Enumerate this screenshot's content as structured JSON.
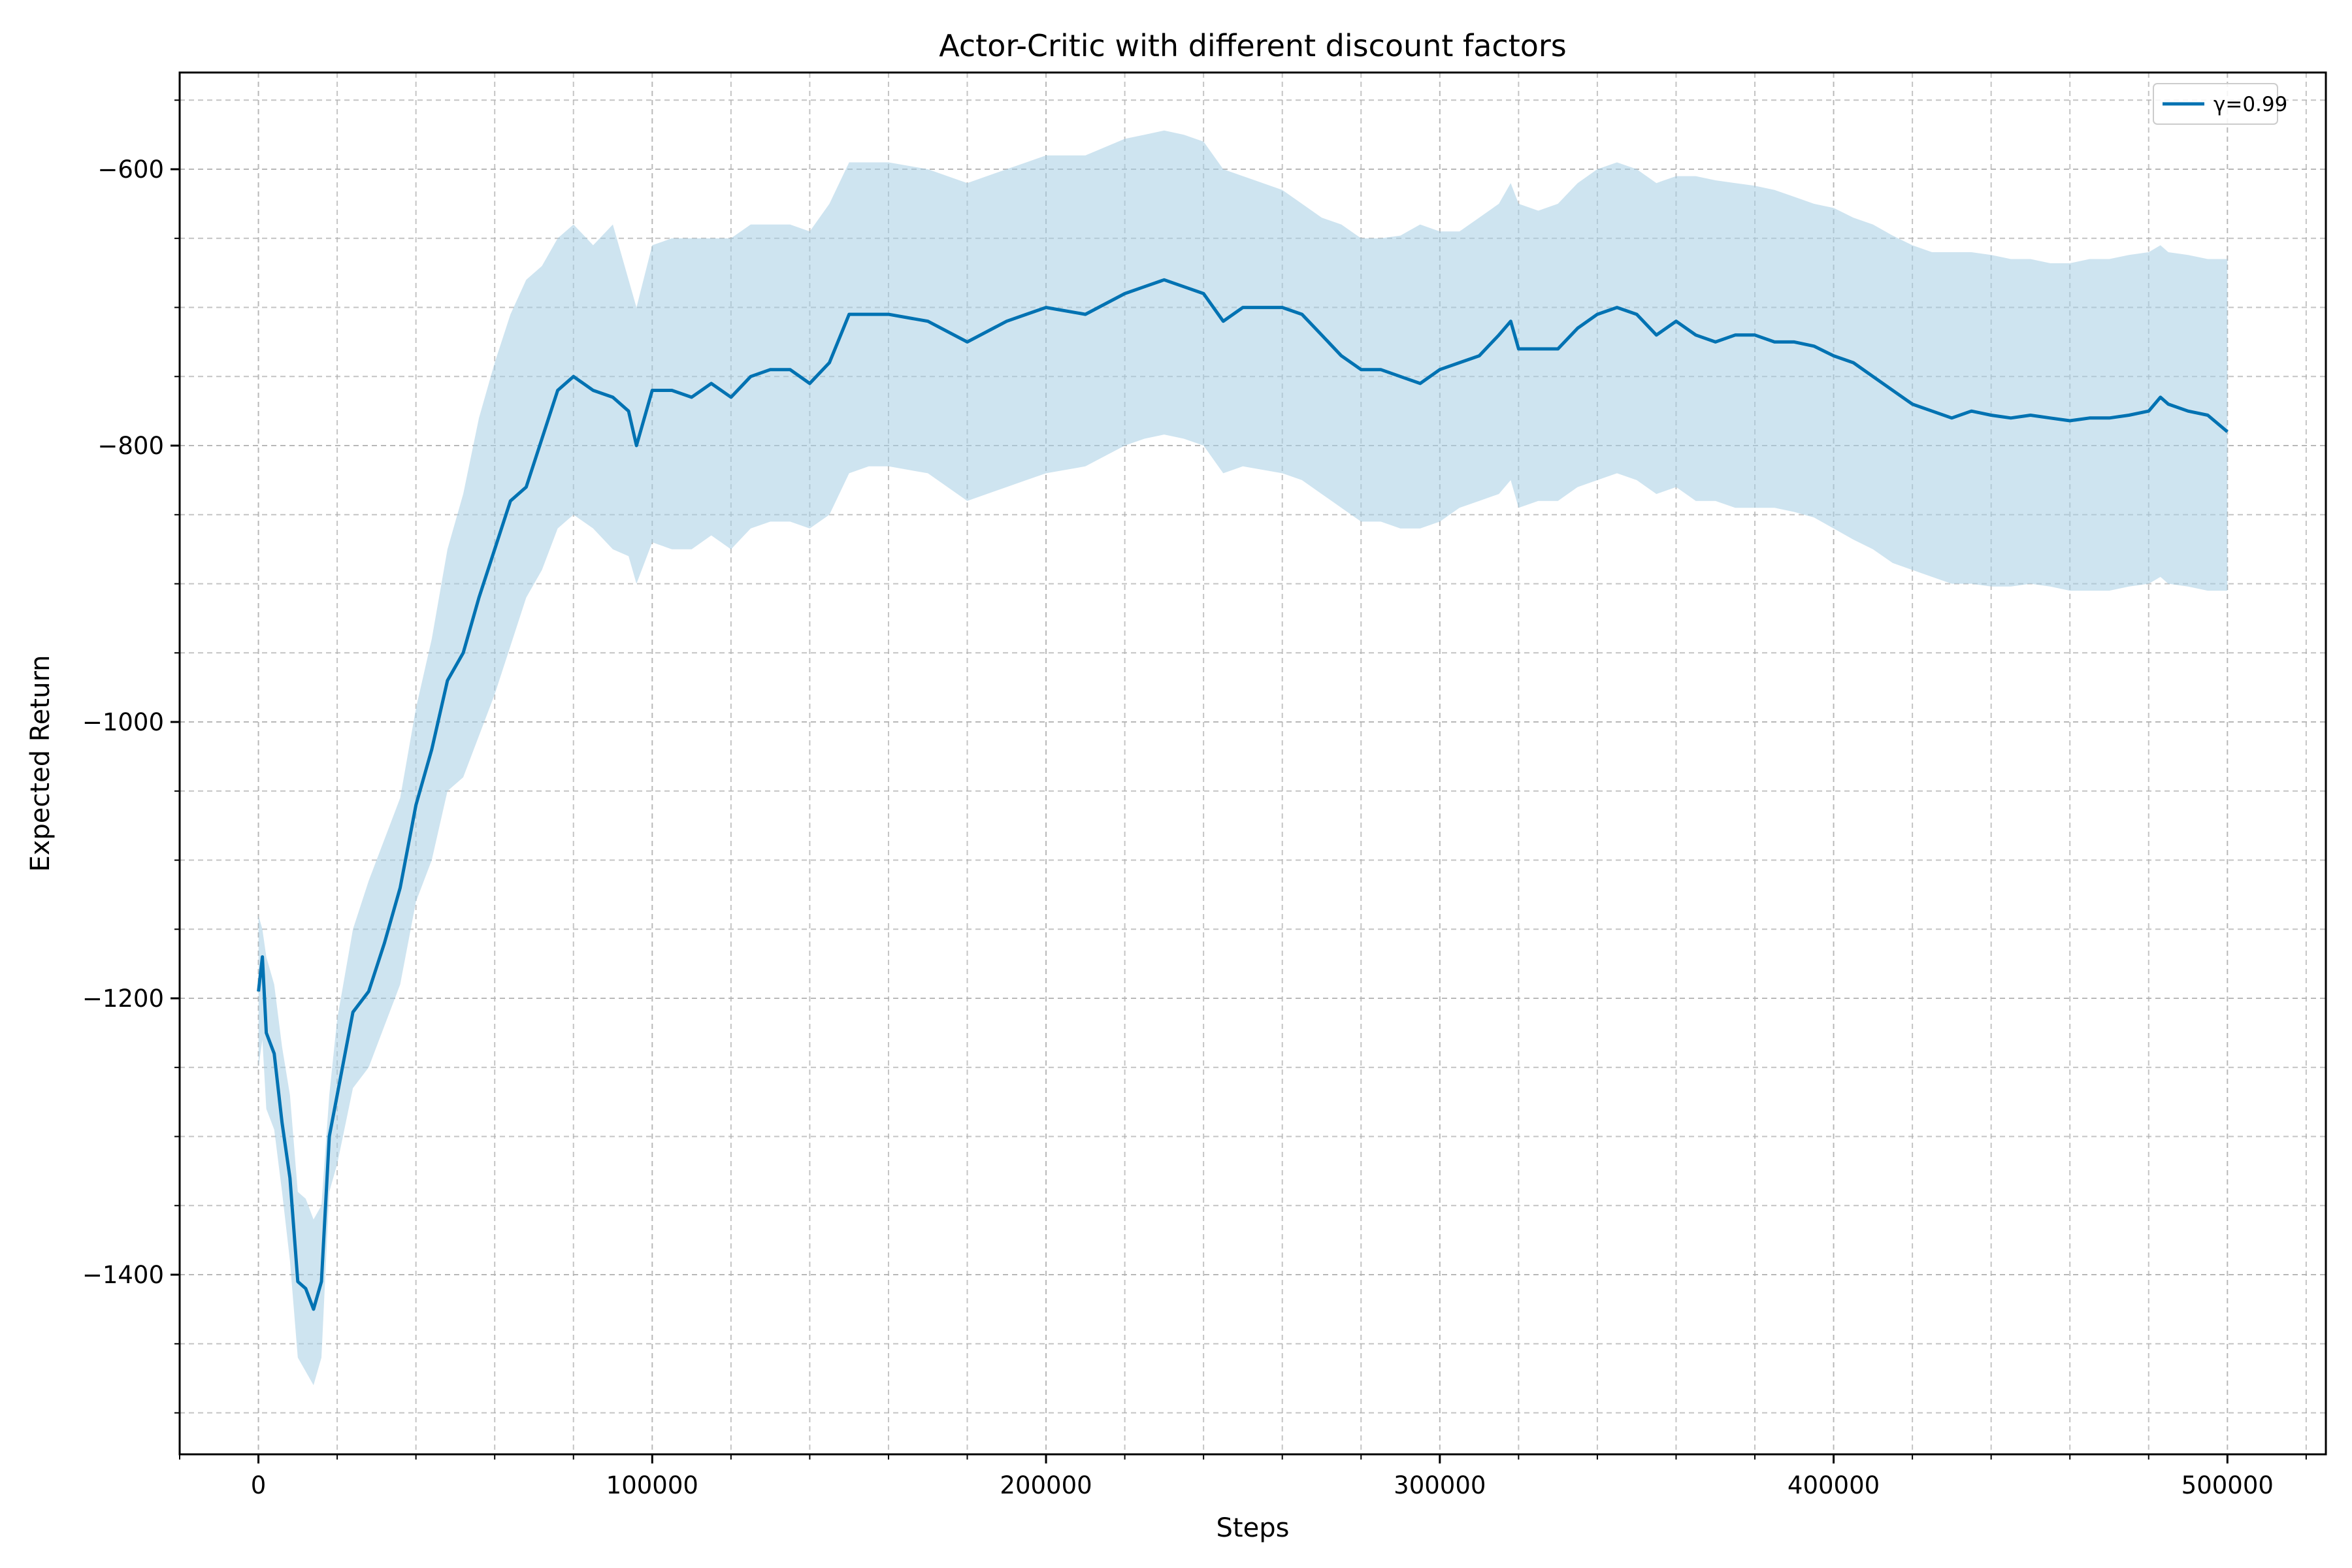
{
  "chart_data": {
    "type": "line",
    "title": "Actor-Critic with different discount factors",
    "xlabel": "Steps",
    "ylabel": "Expected Return",
    "xlim": [
      -20000,
      525000
    ],
    "ylim": [
      -1530,
      -530
    ],
    "x_ticks": [
      0,
      100000,
      200000,
      300000,
      400000,
      500000
    ],
    "y_ticks": [
      -600,
      -800,
      -1000,
      -1200,
      -1400
    ],
    "grid": true,
    "grid_minor": true,
    "legend_position": "top-right",
    "series": [
      {
        "name": "γ=0.99",
        "color": "#0072b2",
        "band_color": "#a6cde3",
        "x": [
          0,
          1000,
          2000,
          4000,
          6000,
          8000,
          10000,
          12000,
          14000,
          16000,
          18000,
          20000,
          24000,
          28000,
          32000,
          36000,
          40000,
          44000,
          48000,
          52000,
          56000,
          60000,
          64000,
          68000,
          72000,
          76000,
          80000,
          85000,
          90000,
          94000,
          96000,
          100000,
          105000,
          110000,
          115000,
          120000,
          125000,
          130000,
          135000,
          140000,
          145000,
          150000,
          155000,
          160000,
          170000,
          180000,
          190000,
          195000,
          200000,
          210000,
          220000,
          225000,
          230000,
          235000,
          240000,
          245000,
          250000,
          260000,
          265000,
          270000,
          275000,
          280000,
          285000,
          290000,
          295000,
          300000,
          305000,
          310000,
          315000,
          318000,
          320000,
          325000,
          330000,
          335000,
          340000,
          345000,
          350000,
          355000,
          360000,
          365000,
          370000,
          375000,
          380000,
          385000,
          390000,
          395000,
          400000,
          405000,
          410000,
          415000,
          420000,
          425000,
          430000,
          435000,
          440000,
          445000,
          450000,
          455000,
          460000,
          465000,
          470000,
          475000,
          480000,
          483000,
          485000,
          490000,
          495000,
          500000
        ],
        "y": [
          -1195,
          -1170,
          -1225,
          -1240,
          -1290,
          -1330,
          -1405,
          -1410,
          -1425,
          -1405,
          -1300,
          -1270,
          -1210,
          -1195,
          -1160,
          -1120,
          -1060,
          -1020,
          -970,
          -950,
          -910,
          -875,
          -840,
          -830,
          -795,
          -760,
          -750,
          -760,
          -765,
          -775,
          -800,
          -760,
          -760,
          -765,
          -755,
          -765,
          -750,
          -745,
          -745,
          -755,
          -740,
          -705,
          -705,
          -705,
          -710,
          -725,
          -710,
          -705,
          -700,
          -705,
          -690,
          -685,
          -680,
          -685,
          -690,
          -710,
          -700,
          -700,
          -705,
          -720,
          -735,
          -745,
          -745,
          -750,
          -755,
          -745,
          -740,
          -735,
          -720,
          -710,
          -730,
          -730,
          -730,
          -715,
          -705,
          -700,
          -705,
          -720,
          -710,
          -720,
          -725,
          -720,
          -720,
          -725,
          -725,
          -728,
          -735,
          -740,
          -750,
          -760,
          -770,
          -775,
          -780,
          -775,
          -778,
          -780,
          -778,
          -780,
          -782,
          -780,
          -780,
          -778,
          -775,
          -765,
          -770,
          -775,
          -778,
          -790
        ],
        "y_upper": [
          -1140,
          -1150,
          -1170,
          -1190,
          -1235,
          -1270,
          -1340,
          -1345,
          -1360,
          -1350,
          -1270,
          -1215,
          -1150,
          -1115,
          -1085,
          -1055,
          -990,
          -940,
          -875,
          -835,
          -780,
          -740,
          -705,
          -680,
          -670,
          -650,
          -640,
          -655,
          -640,
          -680,
          -700,
          -655,
          -650,
          -650,
          -650,
          -650,
          -640,
          -640,
          -640,
          -645,
          -625,
          -595,
          -595,
          -595,
          -600,
          -610,
          -600,
          -595,
          -590,
          -590,
          -578,
          -575,
          -572,
          -575,
          -580,
          -600,
          -605,
          -615,
          -625,
          -635,
          -640,
          -650,
          -650,
          -648,
          -640,
          -645,
          -645,
          -635,
          -625,
          -610,
          -625,
          -630,
          -625,
          -610,
          -600,
          -595,
          -600,
          -610,
          -605,
          -605,
          -608,
          -610,
          -612,
          -615,
          -620,
          -625,
          -628,
          -635,
          -640,
          -648,
          -655,
          -660,
          -660,
          -660,
          -662,
          -665,
          -665,
          -668,
          -668,
          -665,
          -665,
          -662,
          -660,
          -655,
          -660,
          -662,
          -665,
          -665
        ],
        "y_lower": [
          -1250,
          -1230,
          -1280,
          -1295,
          -1340,
          -1390,
          -1460,
          -1470,
          -1480,
          -1460,
          -1340,
          -1320,
          -1265,
          -1250,
          -1220,
          -1190,
          -1130,
          -1100,
          -1050,
          -1040,
          -1010,
          -980,
          -945,
          -910,
          -890,
          -860,
          -850,
          -860,
          -875,
          -880,
          -900,
          -870,
          -875,
          -875,
          -865,
          -875,
          -860,
          -855,
          -855,
          -860,
          -850,
          -820,
          -815,
          -815,
          -820,
          -840,
          -830,
          -825,
          -820,
          -815,
          -800,
          -795,
          -792,
          -795,
          -800,
          -820,
          -815,
          -820,
          -825,
          -835,
          -845,
          -855,
          -855,
          -860,
          -860,
          -855,
          -845,
          -840,
          -835,
          -825,
          -845,
          -840,
          -840,
          -830,
          -825,
          -820,
          -825,
          -835,
          -830,
          -840,
          -840,
          -845,
          -845,
          -845,
          -848,
          -852,
          -860,
          -868,
          -875,
          -885,
          -890,
          -895,
          -900,
          -900,
          -902,
          -902,
          -900,
          -902,
          -905,
          -905,
          -905,
          -902,
          -900,
          -895,
          -900,
          -902,
          -905,
          -905
        ]
      }
    ]
  }
}
